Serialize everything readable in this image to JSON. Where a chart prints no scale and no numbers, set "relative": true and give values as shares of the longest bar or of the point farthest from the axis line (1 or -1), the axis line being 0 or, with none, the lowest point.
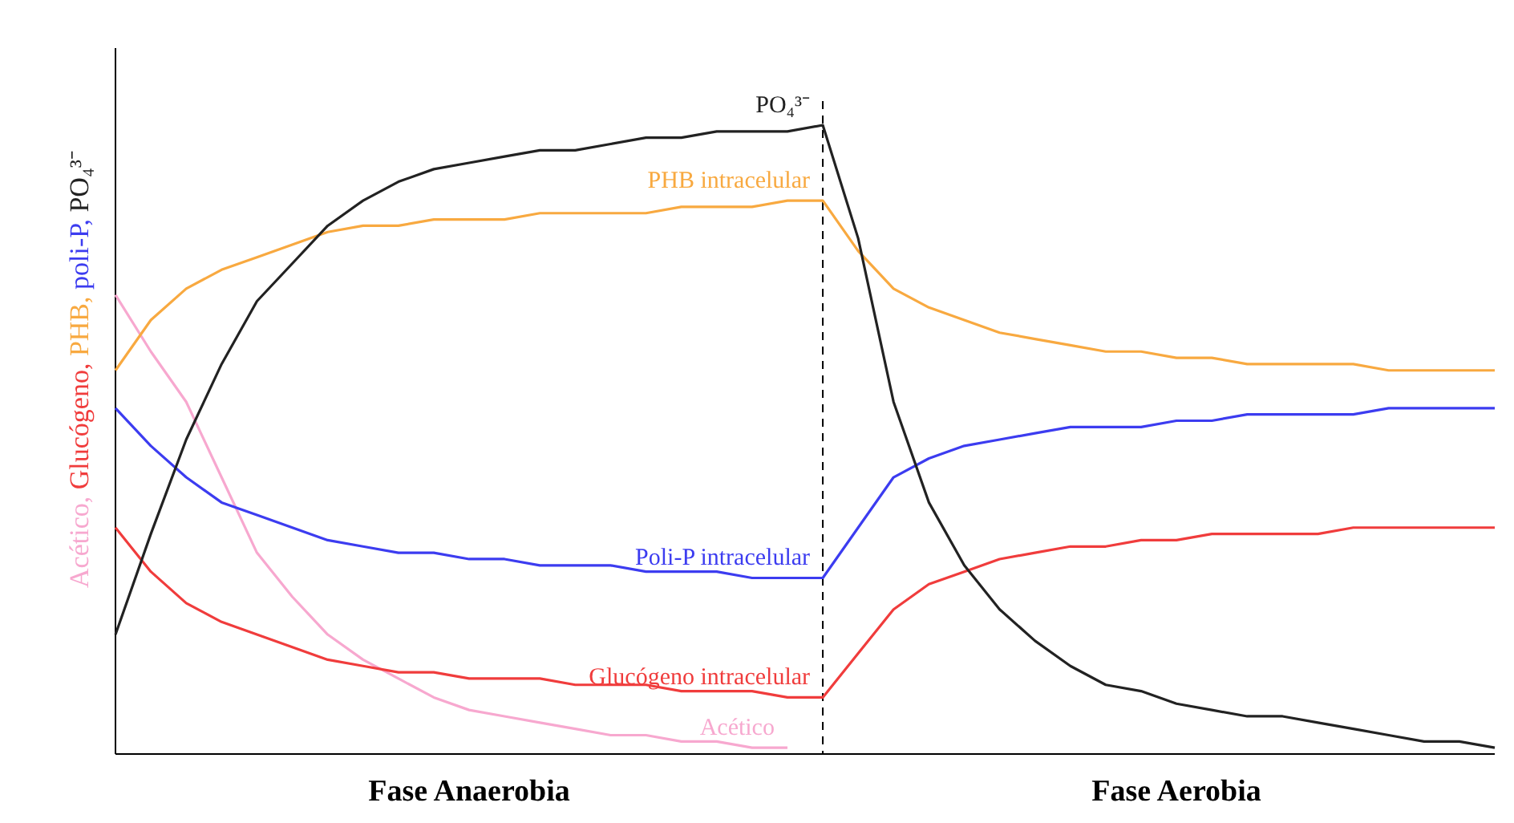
{
  "chart_data": {
    "type": "line",
    "relative": true,
    "ylabel": "Acético, Glucógeno, PHB, poli-P, PO₄³⁻",
    "tick_labels": "x",
    "categories": [
      null,
      null,
      null,
      null,
      null,
      null,
      null,
      null,
      null,
      null,
      "Fase Anaerobia",
      null,
      null,
      null,
      null,
      null,
      null,
      null,
      null,
      null,
      null,
      null,
      null,
      null,
      null,
      null,
      null,
      null,
      null,
      null,
      "Fase Aerobia",
      null,
      null,
      null,
      null,
      null,
      null,
      null,
      null,
      null
    ],
    "series": [
      {
        "name": "Acético",
        "color": "#f7a8cf",
        "values": [
          0.73,
          0.64,
          0.56,
          0.44,
          0.32,
          0.25,
          0.19,
          0.15,
          0.12,
          0.09,
          0.07,
          0.06,
          0.05,
          0.04,
          0.03,
          0.03,
          0.02,
          0.02,
          0.01,
          0.01,
          null,
          null,
          null,
          null,
          null,
          null,
          null,
          null,
          null,
          null,
          null,
          null,
          null,
          null,
          null,
          null,
          null,
          null,
          null,
          null
        ]
      },
      {
        "name": "Glucógeno intracelular",
        "color": "#f03c3c",
        "values": [
          0.36,
          0.29,
          0.24,
          0.21,
          0.19,
          0.17,
          0.15,
          0.14,
          0.13,
          0.13,
          0.12,
          0.12,
          0.12,
          0.11,
          0.11,
          0.11,
          0.1,
          0.1,
          0.1,
          0.09,
          0.09,
          0.16,
          0.23,
          0.27,
          0.29,
          0.31,
          0.32,
          0.33,
          0.33,
          0.34,
          0.34,
          0.35,
          0.35,
          0.35,
          0.35,
          0.36,
          0.36,
          0.36,
          0.36,
          0.36
        ]
      },
      {
        "name": "PHB intracelular",
        "color": "#f8a940",
        "values": [
          0.61,
          0.69,
          0.74,
          0.77,
          0.79,
          0.81,
          0.83,
          0.84,
          0.84,
          0.85,
          0.85,
          0.85,
          0.86,
          0.86,
          0.86,
          0.86,
          0.87,
          0.87,
          0.87,
          0.88,
          0.88,
          0.8,
          0.74,
          0.71,
          0.69,
          0.67,
          0.66,
          0.65,
          0.64,
          0.64,
          0.63,
          0.63,
          0.62,
          0.62,
          0.62,
          0.62,
          0.61,
          0.61,
          0.61,
          0.61
        ]
      },
      {
        "name": "Poli-P intracelular",
        "color": "#3c3cf0",
        "values": [
          0.55,
          0.49,
          0.44,
          0.4,
          0.38,
          0.36,
          0.34,
          0.33,
          0.32,
          0.32,
          0.31,
          0.31,
          0.3,
          0.3,
          0.3,
          0.29,
          0.29,
          0.29,
          0.28,
          0.28,
          0.28,
          0.36,
          0.44,
          0.47,
          0.49,
          0.5,
          0.51,
          0.52,
          0.52,
          0.52,
          0.53,
          0.53,
          0.54,
          0.54,
          0.54,
          0.54,
          0.55,
          0.55,
          0.55,
          0.55
        ]
      },
      {
        "name": "PO₄³⁻",
        "color": "#222222",
        "values": [
          0.19,
          0.35,
          0.5,
          0.62,
          0.72,
          0.78,
          0.84,
          0.88,
          0.91,
          0.93,
          0.94,
          0.95,
          0.96,
          0.96,
          0.97,
          0.98,
          0.98,
          0.99,
          0.99,
          0.99,
          1,
          0.82,
          0.56,
          0.4,
          0.3,
          0.23,
          0.18,
          0.14,
          0.11,
          0.1,
          0.08,
          0.07,
          0.06,
          0.06,
          0.05,
          0.04,
          0.03,
          0.02,
          0.02,
          0.01
        ]
      }
    ]
  }
}
